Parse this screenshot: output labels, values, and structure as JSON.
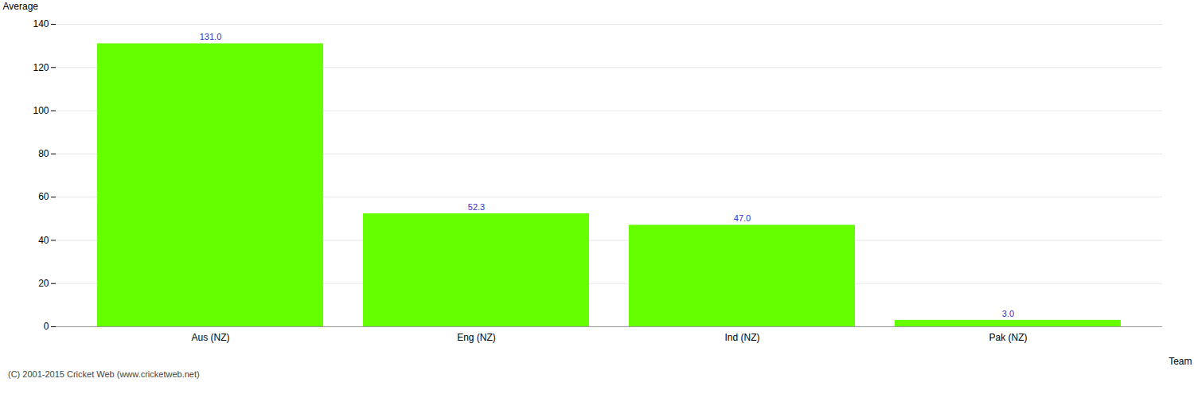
{
  "chart_data": {
    "type": "bar",
    "categories": [
      "Aus (NZ)",
      "Eng (NZ)",
      "Ind (NZ)",
      "Pak (NZ)"
    ],
    "values": [
      131.0,
      52.3,
      47.0,
      3.0
    ],
    "value_labels": [
      "131.0",
      "52.3",
      "47.0",
      "3.0"
    ],
    "data_labels": true,
    "color": "#66ff00",
    "xlabel": "Team",
    "ylabel": "Average",
    "ylim": [
      0,
      140
    ],
    "yticks": [
      0,
      20,
      40,
      60,
      80,
      100,
      120,
      140
    ],
    "grid": true,
    "annotations": [
      "(C) 2001-2015 Cricket Web (www.cricketweb.net)"
    ]
  }
}
